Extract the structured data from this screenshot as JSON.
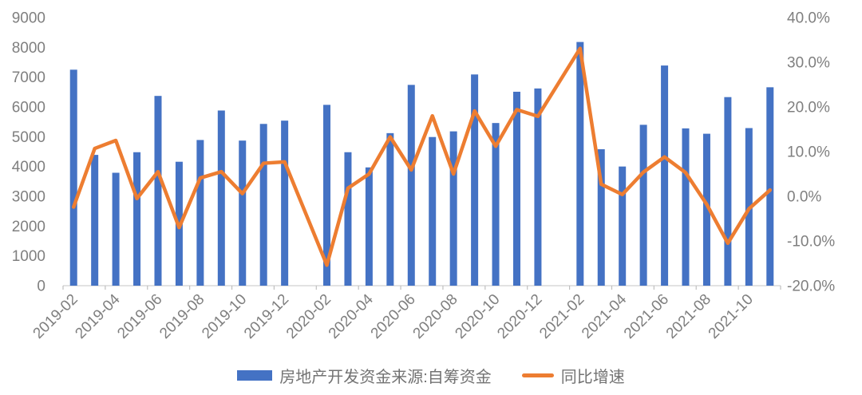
{
  "chart_data": {
    "type": "bar",
    "combo": "bar+line",
    "title": "",
    "categories": [
      "2019-02",
      "2019-03",
      "2019-04",
      "2019-05",
      "2019-06",
      "2019-07",
      "2019-08",
      "2019-09",
      "2019-10",
      "2019-11",
      "2019-12",
      "2020-01",
      "2020-02",
      "2020-03",
      "2020-04",
      "2020-05",
      "2020-06",
      "2020-07",
      "2020-08",
      "2020-09",
      "2020-10",
      "2020-11",
      "2020-12",
      "2021-01",
      "2021-02",
      "2021-03",
      "2021-04",
      "2021-05",
      "2021-06",
      "2021-07",
      "2021-08",
      "2021-09",
      "2021-10",
      "2021-11"
    ],
    "series": [
      {
        "name": "房地产开发资金来源:自筹资金",
        "type": "bar",
        "axis": "left",
        "color": "#4472C4",
        "values": [
          7250,
          4390,
          3790,
          4480,
          6370,
          4160,
          4890,
          5880,
          4870,
          5430,
          5540,
          null,
          6070,
          4480,
          3970,
          5120,
          6740,
          4990,
          5180,
          7090,
          5460,
          6510,
          6620,
          null,
          8180,
          4580,
          4000,
          5400,
          7390,
          5280,
          5100,
          6330,
          5290,
          6660
        ]
      },
      {
        "name": "同比增速",
        "type": "line",
        "axis": "right",
        "color": "#ED7D31",
        "values": [
          -2.4,
          10.7,
          12.5,
          -0.5,
          5.5,
          -7.0,
          4.1,
          5.5,
          0.6,
          7.4,
          7.7,
          null,
          -15.4,
          1.8,
          5.0,
          13.3,
          5.9,
          18.0,
          5.0,
          19.1,
          11.2,
          19.4,
          17.9,
          null,
          33.1,
          2.7,
          0.4,
          5.4,
          8.8,
          5.3,
          -1.8,
          -10.5,
          -2.8,
          1.4
        ]
      }
    ],
    "left_axis": {
      "min": 0,
      "max": 9000,
      "step": 1000,
      "tick_labels": [
        "9000",
        "8000",
        "7000",
        "6000",
        "5000",
        "4000",
        "3000",
        "2000",
        "1000",
        "0"
      ]
    },
    "right_axis": {
      "min": -20,
      "max": 40,
      "step": 10,
      "tick_labels": [
        "40.0%",
        "30.0%",
        "20.0%",
        "10.0%",
        "0.0%",
        "-10.0%",
        "-20.0%"
      ]
    },
    "x_axis": {
      "rotation_deg": -45,
      "label_every_n_categories": 2,
      "tick_labels": [
        "2019-02",
        "2019-04",
        "2019-06",
        "2019-08",
        "2019-10",
        "2019-12",
        "2020-02",
        "2020-04",
        "2020-06",
        "2020-08",
        "2020-10",
        "2020-12",
        "2021-02",
        "2021-04",
        "2021-06",
        "2021-08",
        "2021-10"
      ]
    },
    "grid": "off",
    "legend_position": "bottom"
  },
  "colors": {
    "bar": "#4472C4",
    "line": "#ED7D31",
    "axis_label_text": "#7f7f7f",
    "legend_text": "#737373",
    "axis_line": "#D9D9D9",
    "tick_mark": "#BFBFBF",
    "background": "#ffffff"
  }
}
